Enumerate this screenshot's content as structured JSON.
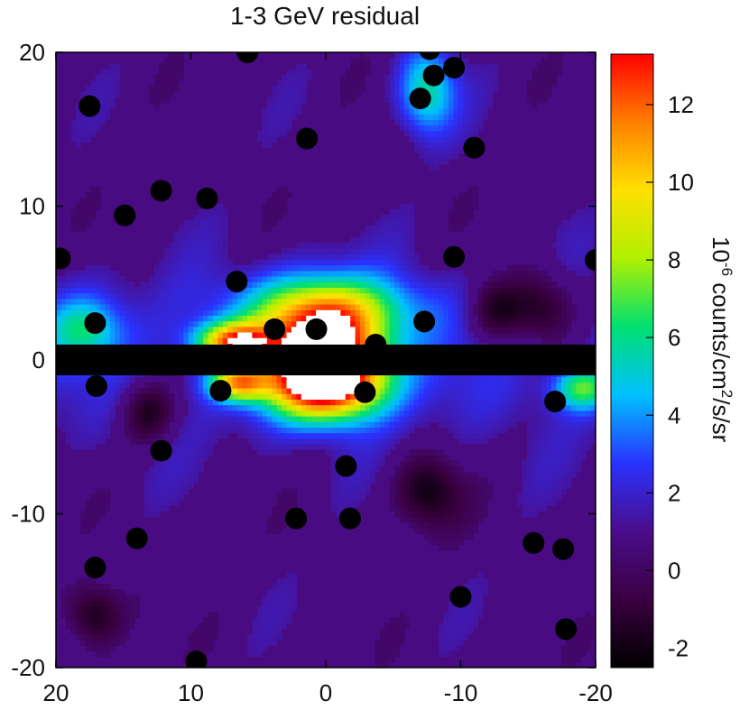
{
  "chart_data": {
    "type": "heatmap",
    "title": "1-3 GeV residual",
    "xlabel": "",
    "ylabel": "",
    "xlim": [
      20,
      -20
    ],
    "ylim": [
      -20,
      20
    ],
    "x_ticks": [
      "20",
      "10",
      "0",
      "-10",
      "-20"
    ],
    "x_tick_values": [
      20,
      10,
      0,
      -10,
      -20
    ],
    "y_ticks": [
      "20",
      "10",
      "0",
      "-10",
      "-20"
    ],
    "y_tick_values": [
      20,
      10,
      0,
      -10,
      -20
    ],
    "colorbar": {
      "label_base": "10",
      "label_exp": "-6",
      "label_rest": " counts/cm",
      "label_sq": "2",
      "label_tail": "/s/sr",
      "range": [
        -2.5,
        13.3
      ],
      "ticks": [
        "12",
        "10",
        "8",
        "6",
        "4",
        "2",
        "0",
        "-2"
      ],
      "tick_values": [
        12,
        10,
        8,
        6,
        4,
        2,
        0,
        -2
      ],
      "colors": [
        "#000000",
        "#3a0040",
        "#4a0d8a",
        "#2a32ff",
        "#00c0ff",
        "#00e070",
        "#b0f000",
        "#ffe000",
        "#ff8000",
        "#ff0000"
      ]
    },
    "masked_band": {
      "y_range": [
        -1,
        1
      ],
      "color": "#000000"
    },
    "masked_sources": [
      [
        17.5,
        16.5
      ],
      [
        12.2,
        11.0
      ],
      [
        8.8,
        10.5
      ],
      [
        14.9,
        9.4
      ],
      [
        1.4,
        14.4
      ],
      [
        5.8,
        20.0
      ],
      [
        -7.0,
        17.0
      ],
      [
        -8.0,
        18.5
      ],
      [
        -9.5,
        19.0
      ],
      [
        -7.7,
        20.2
      ],
      [
        -11.0,
        13.8
      ],
      [
        19.7,
        6.6
      ],
      [
        6.6,
        5.1
      ],
      [
        -9.5,
        6.7
      ],
      [
        -20.0,
        6.5
      ],
      [
        17.1,
        2.4
      ],
      [
        3.8,
        2.0
      ],
      [
        0.7,
        2.0
      ],
      [
        -3.7,
        1.0
      ],
      [
        -7.3,
        2.5
      ],
      [
        17.0,
        -1.7
      ],
      [
        7.8,
        -2.0
      ],
      [
        -2.9,
        -2.1
      ],
      [
        -17.0,
        -2.7
      ],
      [
        12.2,
        -5.9
      ],
      [
        -1.5,
        -6.9
      ],
      [
        2.2,
        -10.3
      ],
      [
        -1.8,
        -10.3
      ],
      [
        14.0,
        -11.6
      ],
      [
        -15.4,
        -11.9
      ],
      [
        -17.6,
        -12.3
      ],
      [
        17.1,
        -13.5
      ],
      [
        -10.0,
        -15.4
      ],
      [
        -17.8,
        -17.5
      ],
      [
        9.6,
        -19.6
      ]
    ],
    "dark_blobs": [
      [
        17.2,
        -16.5,
        2.2
      ],
      [
        -7.5,
        -8.5,
        2.6
      ],
      [
        13.2,
        -3.3,
        2.2
      ],
      [
        -16.0,
        3.4,
        2.6
      ],
      [
        -12.5,
        3.2,
        2.2
      ]
    ],
    "bright_features": [
      {
        "x": 0.0,
        "y": 1.3,
        "sx": 3.2,
        "sy": 2.2,
        "amp": 11.0
      },
      {
        "x": 0.0,
        "y": -1.6,
        "sx": 3.0,
        "sy": 1.6,
        "amp": 12.0
      },
      {
        "x": 6.8,
        "y": 1.2,
        "sx": 2.0,
        "sy": 0.9,
        "amp": 10.0
      },
      {
        "x": 6.5,
        "y": -1.5,
        "sx": 1.5,
        "sy": 0.8,
        "amp": 8.0
      },
      {
        "x": -7.5,
        "y": 17.5,
        "sx": 1.5,
        "sy": 2.0,
        "amp": 5.0
      },
      {
        "x": -19.0,
        "y": -1.8,
        "sx": 1.5,
        "sy": 1.0,
        "amp": 5.5
      },
      {
        "x": 18.0,
        "y": 2.0,
        "sx": 2.0,
        "sy": 1.5,
        "amp": 4.0
      },
      {
        "x": 0.0,
        "y": 3.5,
        "sx": 5.0,
        "sy": 1.5,
        "amp": 4.0
      }
    ]
  }
}
